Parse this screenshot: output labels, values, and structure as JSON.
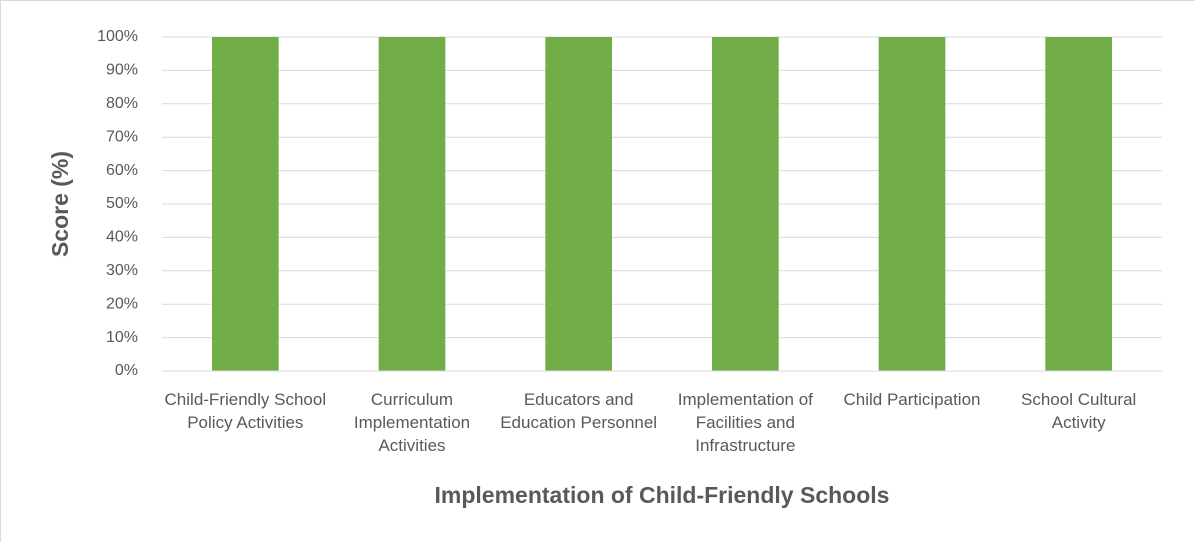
{
  "chart_data": {
    "type": "bar",
    "x_label": "Implementation of Child-Friendly Schools",
    "y_label": "Score (%)",
    "categories": [
      "Child-Friendly School Policy Activities",
      "Curriculum Implementation Activities",
      "Educators and Education Personnel",
      "Implementation of Facilities and Infrastructure",
      "Child Participation",
      "School Cultural Activity"
    ],
    "values": [
      100,
      100,
      100,
      100,
      100,
      100
    ],
    "color": "#70ad47",
    "ylim": [
      0,
      100
    ],
    "yticks": [
      {
        "value": 0,
        "label": "0%"
      },
      {
        "value": 10,
        "label": "10%"
      },
      {
        "value": 20,
        "label": "20%"
      },
      {
        "value": 30,
        "label": "30%"
      },
      {
        "value": 40,
        "label": "40%"
      },
      {
        "value": 50,
        "label": "50%"
      },
      {
        "value": 60,
        "label": "60%"
      },
      {
        "value": 70,
        "label": "70%"
      },
      {
        "value": 80,
        "label": "80%"
      },
      {
        "value": 90,
        "label": "90%"
      },
      {
        "value": 100,
        "label": "100%"
      }
    ],
    "grid": true
  }
}
